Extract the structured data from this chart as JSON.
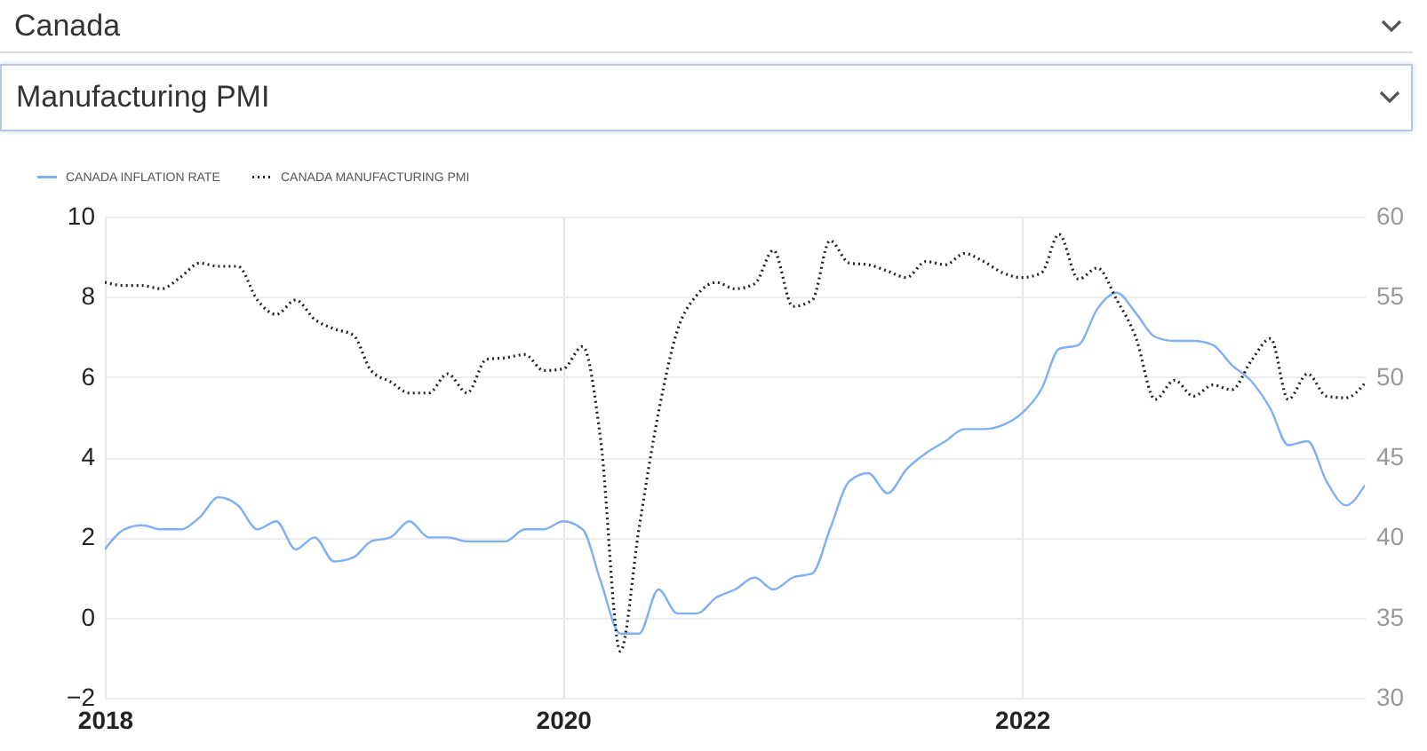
{
  "chart_data": {
    "type": "line",
    "annotations": [
      "Canada",
      "Manufacturing PMI"
    ],
    "x": [
      "2018-01",
      "2018-02",
      "2018-03",
      "2018-04",
      "2018-05",
      "2018-06",
      "2018-07",
      "2018-08",
      "2018-09",
      "2018-10",
      "2018-11",
      "2018-12",
      "2019-01",
      "2019-02",
      "2019-03",
      "2019-04",
      "2019-05",
      "2019-06",
      "2019-07",
      "2019-08",
      "2019-09",
      "2019-10",
      "2019-11",
      "2019-12",
      "2020-01",
      "2020-02",
      "2020-03",
      "2020-04",
      "2020-05",
      "2020-06",
      "2020-07",
      "2020-08",
      "2020-09",
      "2020-10",
      "2020-11",
      "2020-12",
      "2021-01",
      "2021-02",
      "2021-03",
      "2021-04",
      "2021-05",
      "2021-06",
      "2021-07",
      "2021-08",
      "2021-09",
      "2021-10",
      "2021-11",
      "2021-12",
      "2022-01",
      "2022-02",
      "2022-03",
      "2022-04",
      "2022-05",
      "2022-06",
      "2022-07",
      "2022-08",
      "2022-09",
      "2022-10",
      "2022-11",
      "2022-12",
      "2023-01",
      "2023-02",
      "2023-03",
      "2023-04",
      "2023-05",
      "2023-06",
      "2023-07"
    ],
    "series": [
      {
        "name": "CANADA INFLATION RATE",
        "color": "#7fb0f5",
        "line_style": "solid",
        "values": [
          1.7,
          2.2,
          2.3,
          2.2,
          2.2,
          2.5,
          3.0,
          2.8,
          2.2,
          2.4,
          1.7,
          2.0,
          1.4,
          1.5,
          1.9,
          2.0,
          2.4,
          2.0,
          2.0,
          1.9,
          1.9,
          1.9,
          2.2,
          2.2,
          2.4,
          2.2,
          0.9,
          -0.4,
          -0.4,
          0.7,
          0.1,
          0.1,
          0.5,
          0.7,
          1.0,
          0.7,
          1.0,
          1.1,
          2.2,
          3.4,
          3.6,
          3.1,
          3.7,
          4.1,
          4.4,
          4.7,
          4.7,
          4.8,
          5.1,
          5.7,
          6.7,
          6.8,
          7.7,
          8.1,
          7.6,
          7.0,
          6.9,
          6.9,
          6.8,
          6.3,
          5.9,
          5.2,
          4.3,
          4.4,
          3.4,
          2.8,
          3.3
        ]
      },
      {
        "name": "CANADA MANUFACTURING PMI",
        "color": "#222222",
        "line_style": "dotted",
        "axis": "y2",
        "values": [
          55.9,
          55.7,
          55.7,
          55.5,
          56.2,
          57.1,
          56.9,
          56.9,
          54.8,
          53.9,
          54.8,
          53.6,
          53.0,
          52.6,
          50.4,
          49.7,
          49.0,
          49.0,
          50.2,
          49.0,
          51.1,
          51.2,
          51.4,
          50.4,
          50.5,
          51.9,
          46.0,
          32.9,
          40.6,
          47.8,
          52.9,
          55.1,
          55.9,
          55.5,
          55.8,
          57.9,
          54.4,
          54.8,
          58.5,
          57.1,
          57.0,
          56.6,
          56.2,
          57.2,
          57.0,
          57.7,
          57.2,
          56.5,
          56.2,
          56.5,
          58.9,
          56.1,
          56.8,
          54.8,
          52.5,
          48.6,
          49.8,
          48.8,
          49.5,
          49.2,
          51.0,
          52.4,
          48.6,
          50.2,
          48.8,
          48.7,
          49.6
        ]
      }
    ],
    "xlim": [
      "2018-01",
      "2023-07"
    ],
    "xticks": [
      "2018",
      "2020",
      "2022"
    ],
    "ylim": [
      -2,
      10
    ],
    "yticks": [
      -2,
      0,
      2,
      4,
      6,
      8,
      10
    ],
    "y2lim": [
      30,
      60
    ],
    "y2ticks": [
      30,
      35,
      40,
      45,
      50,
      55,
      60
    ],
    "grid": true,
    "legend": "top left"
  }
}
